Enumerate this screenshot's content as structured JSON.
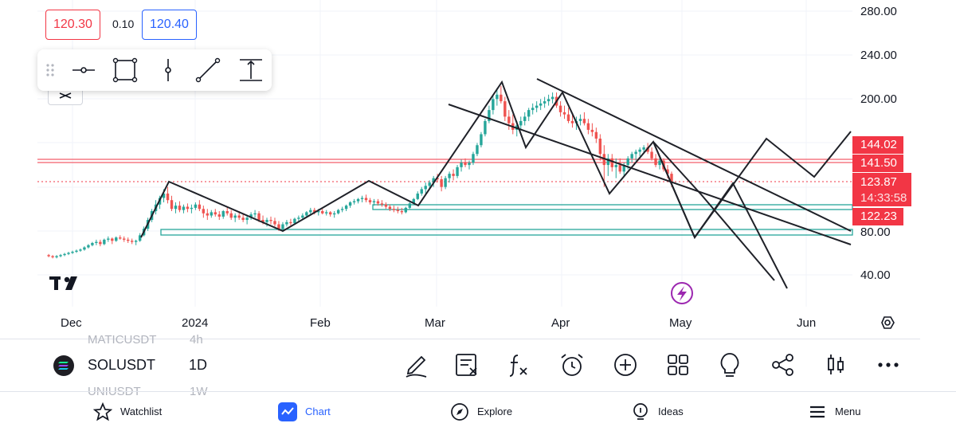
{
  "quote": {
    "bid": "120.30",
    "spread": "0.10",
    "ask": "120.40"
  },
  "price_axis": [
    "280.00",
    "240.00",
    "200.00",
    "80.00",
    "40.00"
  ],
  "time_axis": [
    "Dec",
    "2024",
    "Feb",
    "Mar",
    "Apr",
    "May",
    "Jun"
  ],
  "price_badges": {
    "level_1": "144.02",
    "level_2": "141.50",
    "last_price": "123.87",
    "countdown": "14:33:58",
    "level_3": "122.23"
  },
  "logo": "TV",
  "toolbar": {
    "tools": [
      "horizontal-ray-icon",
      "rectangle-icon",
      "vertical-line-icon",
      "trend-line-icon",
      "price-range-icon"
    ]
  },
  "symbol_bar": {
    "prev_symbol": "MATICUSDT",
    "prev_interval": "4h",
    "symbol": "SOLUSDT",
    "interval": "1D",
    "next_symbol": "UNIUSDT",
    "next_interval": "1W"
  },
  "actions": [
    "pencil-icon",
    "remove-drawings-icon",
    "indicators-icon",
    "alert-icon",
    "add-icon",
    "layouts-icon",
    "ideas-bulb-icon",
    "share-icon",
    "chart-type-icon",
    "more-icon"
  ],
  "nav": [
    {
      "label": "Watchlist",
      "icon": "star-icon"
    },
    {
      "label": "Chart",
      "icon": "chart-icon"
    },
    {
      "label": "Explore",
      "icon": "compass-icon"
    },
    {
      "label": "Ideas",
      "icon": "bulb-icon"
    },
    {
      "label": "Menu",
      "icon": "menu-icon"
    }
  ],
  "colors": {
    "up": "#26a69a",
    "down": "#ef5350",
    "badge": "#f23645",
    "accent": "#2962ff",
    "event": "#9c27b0"
  },
  "chart_data": {
    "type": "candlestick",
    "y_range": [
      20,
      290
    ],
    "date_range": [
      "2023-11-25",
      "2024-06-15"
    ],
    "candles": [
      [
        "2023-11-25",
        58,
        59,
        56,
        57
      ],
      [
        "2023-11-26",
        57,
        58,
        55,
        56
      ],
      [
        "2023-11-27",
        56,
        58,
        55,
        57
      ],
      [
        "2023-11-28",
        57,
        59,
        56,
        58
      ],
      [
        "2023-11-29",
        58,
        60,
        57,
        59
      ],
      [
        "2023-11-30",
        59,
        61,
        58,
        60
      ],
      [
        "2023-12-01",
        60,
        62,
        59,
        61
      ],
      [
        "2023-12-02",
        61,
        63,
        60,
        62
      ],
      [
        "2023-12-03",
        62,
        64,
        61,
        63
      ],
      [
        "2023-12-04",
        63,
        66,
        62,
        65
      ],
      [
        "2023-12-05",
        65,
        68,
        64,
        67
      ],
      [
        "2023-12-06",
        67,
        70,
        66,
        69
      ],
      [
        "2023-12-07",
        69,
        72,
        67,
        70
      ],
      [
        "2023-12-08",
        70,
        72,
        66,
        68
      ],
      [
        "2023-12-09",
        68,
        73,
        67,
        72
      ],
      [
        "2023-12-10",
        72,
        75,
        70,
        73
      ],
      [
        "2023-12-11",
        73,
        74,
        68,
        71
      ],
      [
        "2023-12-12",
        71,
        75,
        70,
        74
      ],
      [
        "2023-12-13",
        74,
        76,
        72,
        73
      ],
      [
        "2023-12-14",
        73,
        75,
        70,
        72
      ],
      [
        "2023-12-15",
        72,
        74,
        69,
        71
      ],
      [
        "2023-12-16",
        71,
        73,
        68,
        70
      ],
      [
        "2023-12-17",
        70,
        72,
        67,
        71
      ],
      [
        "2023-12-18",
        71,
        78,
        70,
        76
      ],
      [
        "2023-12-19",
        76,
        84,
        75,
        82
      ],
      [
        "2023-12-20",
        82,
        92,
        80,
        90
      ],
      [
        "2023-12-21",
        90,
        100,
        88,
        98
      ],
      [
        "2023-12-22",
        98,
        108,
        95,
        104
      ],
      [
        "2023-12-23",
        104,
        112,
        100,
        110
      ],
      [
        "2023-12-24",
        110,
        118,
        106,
        114
      ],
      [
        "2023-12-25",
        114,
        120,
        105,
        108
      ],
      [
        "2023-12-26",
        108,
        112,
        98,
        100
      ],
      [
        "2023-12-27",
        100,
        106,
        96,
        103
      ],
      [
        "2023-12-28",
        103,
        107,
        97,
        99
      ],
      [
        "2023-12-29",
        99,
        104,
        96,
        102
      ],
      [
        "2023-12-30",
        102,
        105,
        97,
        100
      ],
      [
        "2023-12-31",
        100,
        104,
        96,
        101
      ],
      [
        "2024-01-01",
        101,
        106,
        99,
        104
      ],
      [
        "2024-01-02",
        104,
        108,
        98,
        100
      ],
      [
        "2024-01-03",
        100,
        103,
        92,
        96
      ],
      [
        "2024-01-04",
        96,
        100,
        90,
        94
      ],
      [
        "2024-01-05",
        94,
        99,
        92,
        97
      ],
      [
        "2024-01-06",
        97,
        100,
        93,
        95
      ],
      [
        "2024-01-07",
        95,
        98,
        90,
        93
      ],
      [
        "2024-01-08",
        93,
        99,
        91,
        98
      ],
      [
        "2024-01-09",
        98,
        102,
        94,
        96
      ],
      [
        "2024-01-10",
        96,
        99,
        90,
        92
      ],
      [
        "2024-01-11",
        92,
        96,
        88,
        94
      ],
      [
        "2024-01-12",
        94,
        98,
        90,
        92
      ],
      [
        "2024-01-13",
        92,
        96,
        88,
        90
      ],
      [
        "2024-01-14",
        90,
        94,
        86,
        92
      ],
      [
        "2024-01-15",
        92,
        97,
        90,
        95
      ],
      [
        "2024-01-16",
        95,
        99,
        92,
        96
      ],
      [
        "2024-01-17",
        96,
        98,
        88,
        90
      ],
      [
        "2024-01-18",
        90,
        94,
        86,
        88
      ],
      [
        "2024-01-19",
        88,
        92,
        84,
        90
      ],
      [
        "2024-01-20",
        90,
        93,
        86,
        89
      ],
      [
        "2024-01-21",
        89,
        92,
        84,
        86
      ],
      [
        "2024-01-22",
        86,
        89,
        80,
        82
      ],
      [
        "2024-01-23",
        82,
        88,
        79,
        86
      ],
      [
        "2024-01-24",
        86,
        90,
        84,
        88
      ],
      [
        "2024-01-25",
        88,
        91,
        85,
        87
      ],
      [
        "2024-01-26",
        87,
        92,
        86,
        91
      ],
      [
        "2024-01-27",
        91,
        94,
        89,
        92
      ],
      [
        "2024-01-28",
        92,
        96,
        90,
        94
      ],
      [
        "2024-01-29",
        94,
        98,
        92,
        97
      ],
      [
        "2024-01-30",
        97,
        101,
        94,
        99
      ],
      [
        "2024-01-31",
        99,
        101,
        95,
        97
      ],
      [
        "2024-02-01",
        97,
        100,
        94,
        98
      ],
      [
        "2024-02-02",
        98,
        100,
        95,
        96
      ],
      [
        "2024-02-03",
        96,
        99,
        94,
        97
      ],
      [
        "2024-02-04",
        97,
        98,
        93,
        95
      ],
      [
        "2024-02-05",
        95,
        98,
        92,
        96
      ],
      [
        "2024-02-06",
        96,
        100,
        95,
        99
      ],
      [
        "2024-02-07",
        99,
        102,
        97,
        100
      ],
      [
        "2024-02-08",
        100,
        104,
        98,
        103
      ],
      [
        "2024-02-09",
        103,
        107,
        101,
        106
      ],
      [
        "2024-02-10",
        106,
        109,
        104,
        107
      ],
      [
        "2024-02-11",
        107,
        110,
        105,
        109
      ],
      [
        "2024-02-12",
        109,
        112,
        106,
        110
      ],
      [
        "2024-02-13",
        110,
        113,
        106,
        108
      ],
      [
        "2024-02-14",
        108,
        110,
        104,
        106
      ],
      [
        "2024-02-15",
        106,
        109,
        103,
        107
      ],
      [
        "2024-02-16",
        107,
        109,
        103,
        105
      ],
      [
        "2024-02-17",
        105,
        108,
        102,
        104
      ],
      [
        "2024-02-18",
        104,
        106,
        100,
        102
      ],
      [
        "2024-02-19",
        102,
        104,
        98,
        100
      ],
      [
        "2024-02-20",
        100,
        103,
        97,
        99
      ],
      [
        "2024-02-21",
        99,
        102,
        96,
        98
      ],
      [
        "2024-02-22",
        98,
        101,
        95,
        97
      ],
      [
        "2024-02-23",
        97,
        102,
        96,
        101
      ],
      [
        "2024-02-24",
        101,
        106,
        100,
        105
      ],
      [
        "2024-02-25",
        105,
        110,
        104,
        109
      ],
      [
        "2024-02-26",
        109,
        116,
        108,
        114
      ],
      [
        "2024-02-27",
        114,
        120,
        112,
        118
      ],
      [
        "2024-02-28",
        118,
        124,
        114,
        121
      ],
      [
        "2024-02-29",
        121,
        126,
        118,
        124
      ],
      [
        "2024-03-01",
        124,
        130,
        120,
        128
      ],
      [
        "2024-03-02",
        128,
        132,
        124,
        127
      ],
      [
        "2024-03-03",
        127,
        130,
        116,
        120
      ],
      [
        "2024-03-04",
        120,
        130,
        118,
        128
      ],
      [
        "2024-03-05",
        128,
        134,
        124,
        132
      ],
      [
        "2024-03-06",
        132,
        136,
        126,
        130
      ],
      [
        "2024-03-07",
        130,
        140,
        128,
        138
      ],
      [
        "2024-03-08",
        138,
        145,
        134,
        142
      ],
      [
        "2024-03-09",
        142,
        146,
        138,
        140
      ],
      [
        "2024-03-10",
        140,
        144,
        136,
        142
      ],
      [
        "2024-03-11",
        142,
        152,
        140,
        150
      ],
      [
        "2024-03-12",
        150,
        160,
        148,
        158
      ],
      [
        "2024-03-13",
        158,
        170,
        156,
        168
      ],
      [
        "2024-03-14",
        168,
        182,
        166,
        180
      ],
      [
        "2024-03-15",
        180,
        194,
        178,
        190
      ],
      [
        "2024-03-16",
        190,
        204,
        186,
        200
      ],
      [
        "2024-03-17",
        200,
        210,
        194,
        204
      ],
      [
        "2024-03-18",
        204,
        212,
        196,
        198
      ],
      [
        "2024-03-19",
        198,
        202,
        180,
        184
      ],
      [
        "2024-03-20",
        184,
        190,
        172,
        178
      ],
      [
        "2024-03-21",
        178,
        186,
        168,
        172
      ],
      [
        "2024-03-22",
        172,
        180,
        166,
        176
      ],
      [
        "2024-03-23",
        176,
        184,
        172,
        180
      ],
      [
        "2024-03-24",
        180,
        188,
        176,
        184
      ],
      [
        "2024-03-25",
        184,
        192,
        180,
        190
      ],
      [
        "2024-03-26",
        190,
        196,
        186,
        192
      ],
      [
        "2024-03-27",
        192,
        198,
        188,
        194
      ],
      [
        "2024-03-28",
        194,
        200,
        190,
        196
      ],
      [
        "2024-03-29",
        196,
        202,
        192,
        198
      ],
      [
        "2024-03-30",
        198,
        204,
        194,
        200
      ],
      [
        "2024-03-31",
        200,
        206,
        196,
        202
      ],
      [
        "2024-04-01",
        202,
        206,
        192,
        194
      ],
      [
        "2024-04-02",
        194,
        198,
        184,
        188
      ],
      [
        "2024-04-03",
        188,
        194,
        182,
        186
      ],
      [
        "2024-04-04",
        186,
        192,
        178,
        180
      ],
      [
        "2024-04-05",
        180,
        186,
        174,
        178
      ],
      [
        "2024-04-06",
        178,
        184,
        172,
        180
      ],
      [
        "2024-04-07",
        180,
        186,
        176,
        182
      ],
      [
        "2024-04-08",
        182,
        188,
        176,
        178
      ],
      [
        "2024-04-09",
        178,
        182,
        168,
        172
      ],
      [
        "2024-04-10",
        172,
        178,
        166,
        170
      ],
      [
        "2024-04-11",
        170,
        174,
        160,
        164
      ],
      [
        "2024-04-12",
        164,
        168,
        144,
        150
      ],
      [
        "2024-04-13",
        150,
        158,
        120,
        140
      ],
      [
        "2024-04-14",
        140,
        150,
        130,
        146
      ],
      [
        "2024-04-15",
        146,
        150,
        134,
        138
      ],
      [
        "2024-04-16",
        138,
        146,
        128,
        140
      ],
      [
        "2024-04-17",
        140,
        146,
        132,
        134
      ],
      [
        "2024-04-18",
        134,
        142,
        130,
        140
      ],
      [
        "2024-04-19",
        140,
        148,
        136,
        146
      ],
      [
        "2024-04-20",
        146,
        152,
        142,
        150
      ],
      [
        "2024-04-21",
        150,
        154,
        144,
        152
      ],
      [
        "2024-04-22",
        152,
        156,
        148,
        154
      ],
      [
        "2024-04-23",
        154,
        158,
        150,
        156
      ],
      [
        "2024-04-24",
        156,
        160,
        150,
        152
      ],
      [
        "2024-04-25",
        152,
        156,
        144,
        146
      ],
      [
        "2024-04-26",
        146,
        150,
        138,
        140
      ],
      [
        "2024-04-27",
        140,
        146,
        136,
        144
      ],
      [
        "2024-04-28",
        144,
        146,
        134,
        136
      ],
      [
        "2024-04-29",
        136,
        140,
        128,
        132
      ],
      [
        "2024-04-30",
        132,
        134,
        120,
        124
      ]
    ]
  }
}
